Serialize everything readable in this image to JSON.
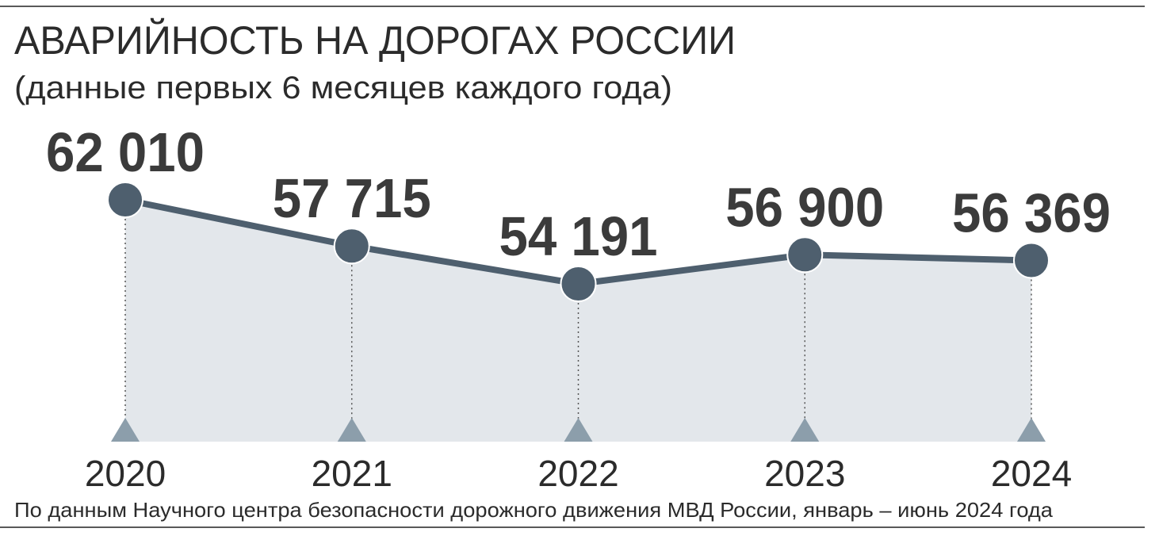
{
  "chart_data": {
    "type": "line",
    "title": "АВАРИЙНОСТЬ НА ДОРОГАХ РОССИИ",
    "subtitle": "(данные первых 6 месяцев каждого года)",
    "categories": [
      "2020",
      "2021",
      "2022",
      "2023",
      "2024"
    ],
    "values": [
      62010,
      57715,
      54191,
      56900,
      56369
    ],
    "value_labels": [
      "62 010",
      "57 715",
      "54 191",
      "56 900",
      "56 369"
    ],
    "color": "#4e5f6e",
    "area_color": "#e3e7eb",
    "source": "По данным Научного центра безопасности дорожного движения МВД России, январь – июнь 2024 года"
  }
}
